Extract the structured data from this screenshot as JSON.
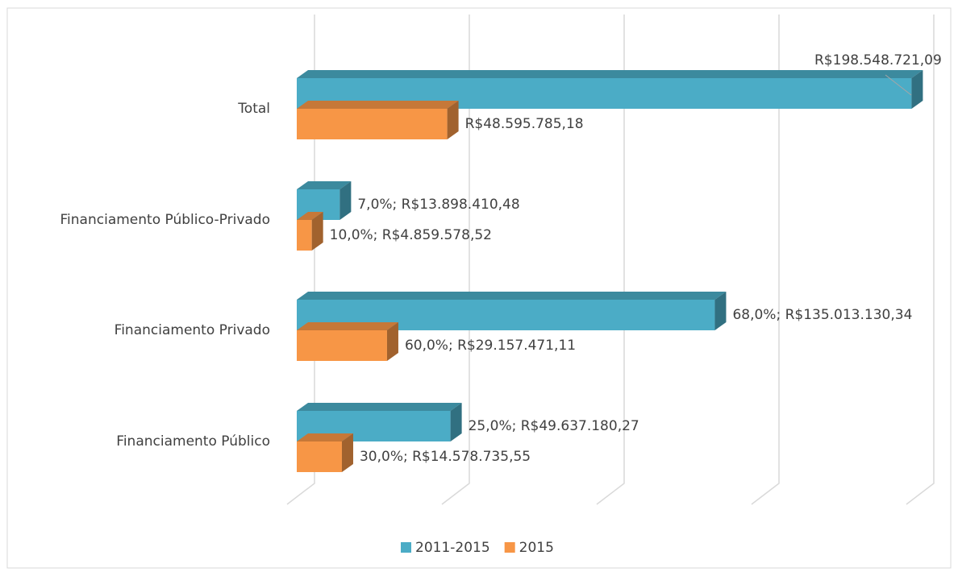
{
  "chart_data": {
    "type": "bar3d_horizontal",
    "categories": [
      "Total",
      "Financiamento Público-Privado",
      "Financiamento Privado",
      "Financiamento Público"
    ],
    "series": [
      {
        "name": "2011-2015",
        "color": "#4bacc6",
        "values": [
          198548721.09,
          13898410.48,
          135013130.34,
          49637180.27
        ],
        "value_labels": [
          "R$198.548.721,09",
          "7,0%; R$13.898.410,48",
          "68,0%; R$135.013.130,34",
          "25,0%; R$49.637.180,27"
        ]
      },
      {
        "name": "2015",
        "color": "#f79646",
        "values": [
          48595785.18,
          4859578.52,
          29157471.11,
          14578735.55
        ],
        "value_labels": [
          "R$48.595.785,18",
          "10,0%; R$4.859.578,52",
          "60,0%; R$29.157.471,11",
          "30,0%; R$14.578.735,55"
        ]
      }
    ],
    "xlim": [
      0,
      200000000
    ],
    "xticks": [
      0,
      50000000,
      100000000,
      150000000,
      200000000
    ],
    "grid": true,
    "legend": "bottom"
  }
}
